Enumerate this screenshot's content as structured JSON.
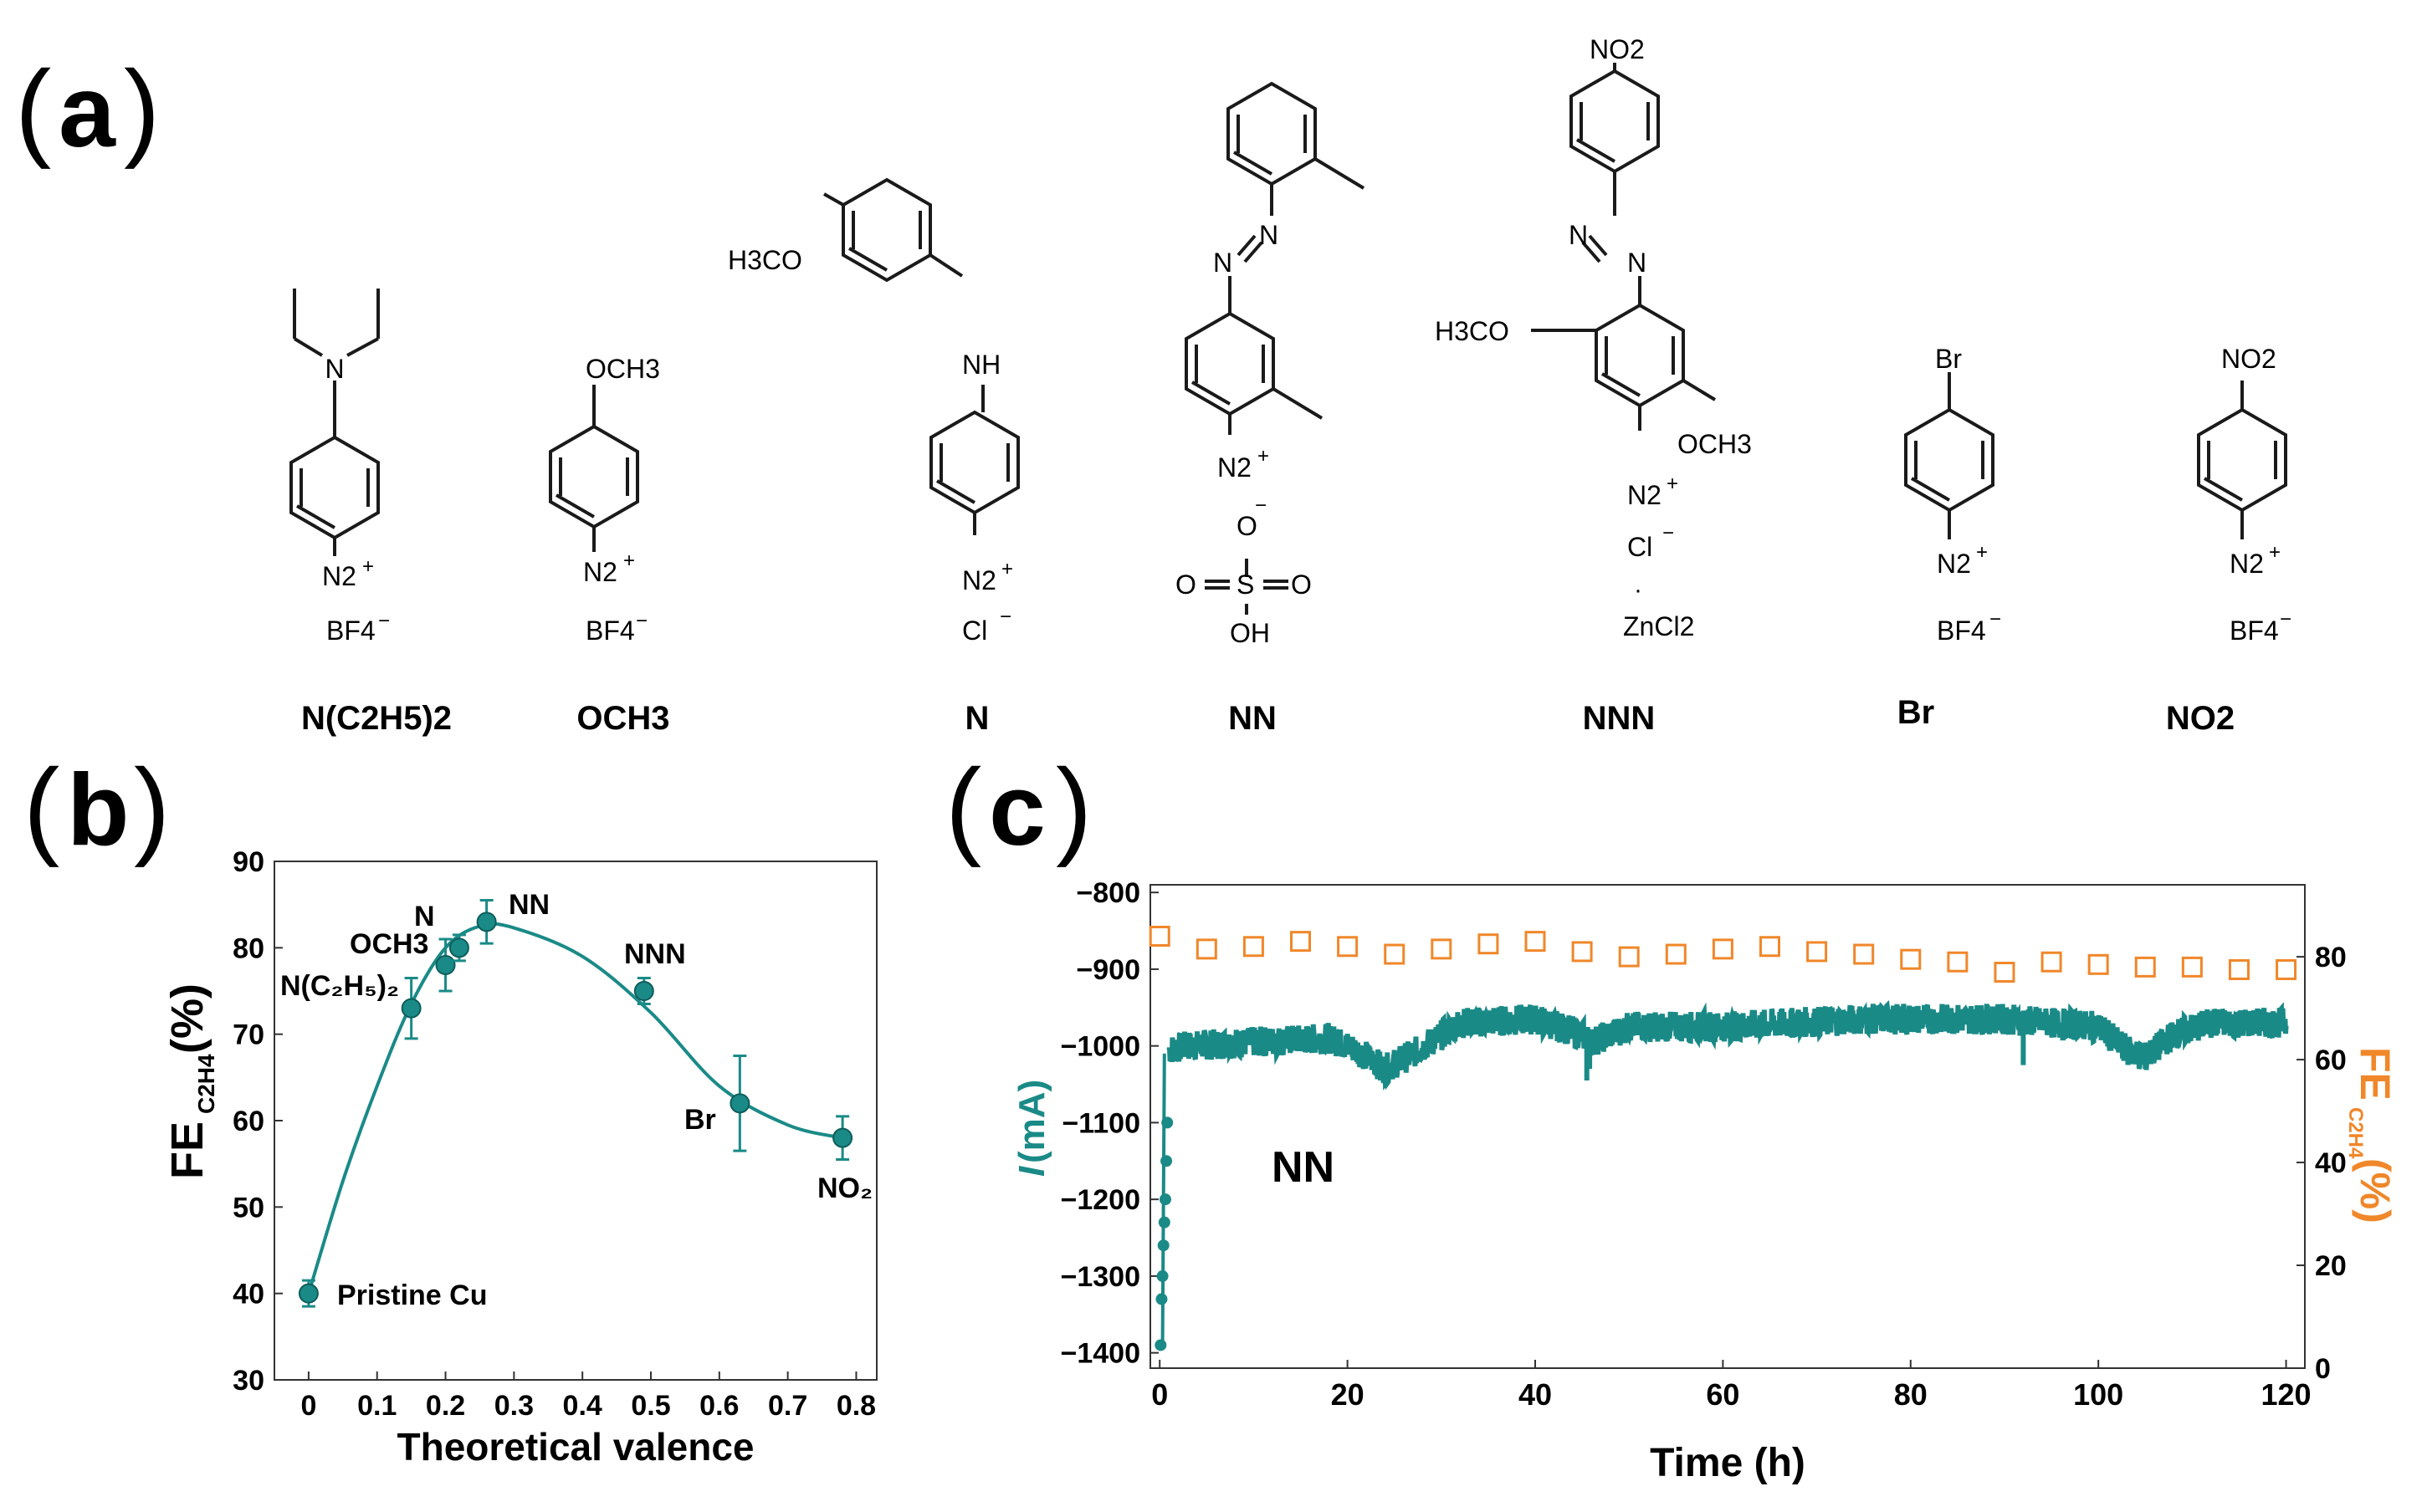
{
  "panels": {
    "a": "a",
    "b": "b",
    "c": "c"
  },
  "structures": {
    "ne2": {
      "name": "N(C2H5)2",
      "n": "N",
      "n2": "N2",
      "counter": "BF4"
    },
    "och3": {
      "name": "OCH3",
      "sub": "OCH3",
      "n2": "N2",
      "counter": "BF4"
    },
    "n": {
      "name": "N",
      "sub": "H3CO",
      "nh": "NH",
      "n2": "N2",
      "counter": "Cl"
    },
    "nn": {
      "name": "NN",
      "n2": "N2",
      "o1": "O",
      "o2": "O",
      "o3": "O",
      "s": "S",
      "oh": "OH",
      "azo1": "N",
      "azo2": "N"
    },
    "nnn": {
      "name": "NNN",
      "no2": "NO2",
      "h3co": "H3CO",
      "och3": "OCH3",
      "n2": "N2",
      "cl": "Cl",
      "zncl": "ZnCl2",
      "azo1": "N",
      "azo2": "N"
    },
    "br": {
      "name": "Br",
      "sub": "Br",
      "n2": "N2",
      "counter": "BF4"
    },
    "no2": {
      "name": "NO2",
      "sub": "NO2",
      "n2": "N2",
      "counter": "BF4"
    }
  },
  "chart_data": [
    {
      "type": "scatter",
      "panel": "b",
      "xlabel": "Theoretical valence",
      "ylabel": "FEC2H4(%)",
      "ylabel_main": "FE",
      "ylabel_sub": "C2H4",
      "ylabel_unit": "(%)",
      "xlim": [
        -0.05,
        0.83
      ],
      "ylim": [
        30,
        90
      ],
      "xticks": [
        0,
        0.1,
        0.2,
        0.3,
        0.4,
        0.5,
        0.6,
        0.7,
        0.8
      ],
      "xtick_labels": [
        "0",
        "0.1",
        "0.2",
        "0.3",
        "0.4",
        "0.5",
        "0.6",
        "0.7",
        "0.8"
      ],
      "yticks": [
        30,
        40,
        50,
        60,
        70,
        80,
        90
      ],
      "color": "#1a8a87",
      "points": [
        {
          "label": "Pristine Cu",
          "x": 0.0,
          "y": 40,
          "err": 1.5
        },
        {
          "label": "N(C2H5)2",
          "x": 0.15,
          "y": 73,
          "err": 3.5
        },
        {
          "label": "N",
          "x": 0.2,
          "y": 78,
          "err": 3
        },
        {
          "label": "OCH3",
          "x": 0.22,
          "y": 80,
          "err": 1.5
        },
        {
          "label": "NN",
          "x": 0.26,
          "y": 83,
          "err": 2.5
        },
        {
          "label": "NNN",
          "x": 0.49,
          "y": 75,
          "err": 1.5
        },
        {
          "label": "Br",
          "x": 0.63,
          "y": 62,
          "err": 5.5
        },
        {
          "label": "NO2",
          "x": 0.78,
          "y": 58,
          "err": 2.5
        }
      ],
      "fit_curve": {
        "x": [
          0,
          0.05,
          0.1,
          0.15,
          0.2,
          0.25,
          0.3,
          0.4,
          0.5,
          0.6,
          0.7,
          0.78
        ],
        "y": [
          40,
          53,
          64,
          73.5,
          80,
          82.5,
          82.3,
          79,
          72.5,
          64,
          59.5,
          58
        ]
      },
      "annotations": {
        "pristine": "Pristine Cu",
        "ne2": "N(C₂H₅)₂",
        "n": "N",
        "och3": "OCH3",
        "nn": "NN",
        "nnn": "NNN",
        "br": "Br",
        "no2": "NO₂"
      }
    },
    {
      "type": "scatter",
      "panel": "c",
      "title_label": "NN",
      "xlabel": "Time (h)",
      "ylabel_left": "I (mA)",
      "ylabel_left_italic": "I",
      "ylabel_left_unit": " (mA)",
      "ylabel_right": "FEC2H4(%)",
      "ylabel_right_main": "FE",
      "ylabel_right_sub": "C2H4",
      "ylabel_right_unit": "(%)",
      "xlim": [
        -1,
        122
      ],
      "xticks": [
        0,
        20,
        40,
        60,
        80,
        100,
        120
      ],
      "ylim_left": [
        -1420,
        -790
      ],
      "yticks_left": [
        -1400,
        -1300,
        -1200,
        -1100,
        -1000,
        -900,
        -800
      ],
      "ylim_right": [
        0,
        94
      ],
      "yticks_right": [
        0,
        20,
        40,
        60,
        80
      ],
      "current_color": "#1a8a87",
      "fe_color": "#f0872a",
      "current_initial": [
        {
          "t": 0.1,
          "i": -1390
        },
        {
          "t": 0.2,
          "i": -1330
        },
        {
          "t": 0.3,
          "i": -1300
        },
        {
          "t": 0.4,
          "i": -1260
        },
        {
          "t": 0.5,
          "i": -1230
        },
        {
          "t": 0.6,
          "i": -1200
        },
        {
          "t": 0.7,
          "i": -1150
        },
        {
          "t": 0.8,
          "i": -1100
        }
      ],
      "current_trend": {
        "t": [
          1,
          3,
          10,
          18,
          21,
          24,
          27,
          32,
          40,
          45,
          46,
          50,
          60,
          75,
          90,
          100,
          103,
          105,
          108,
          112,
          120
        ],
        "i": [
          -1005,
          -1000,
          -995,
          -990,
          -1005,
          -1030,
          -1010,
          -970,
          -965,
          -985,
          -995,
          -975,
          -975,
          -965,
          -965,
          -975,
          -1005,
          -1015,
          -985,
          -970,
          -970
        ]
      },
      "fe_points": {
        "t": [
          0,
          5,
          10,
          15,
          20,
          25,
          30,
          35,
          40,
          45,
          50,
          55,
          60,
          65,
          70,
          75,
          80,
          85,
          90,
          95,
          100,
          105,
          110,
          115,
          120
        ],
        "fe": [
          84,
          81.5,
          82,
          83,
          82,
          80.5,
          81.5,
          82.5,
          83,
          81,
          80,
          80.5,
          81.5,
          82,
          81,
          80.5,
          79.5,
          79,
          77,
          79,
          78.5,
          78,
          78,
          77.5,
          77.5
        ]
      }
    }
  ]
}
